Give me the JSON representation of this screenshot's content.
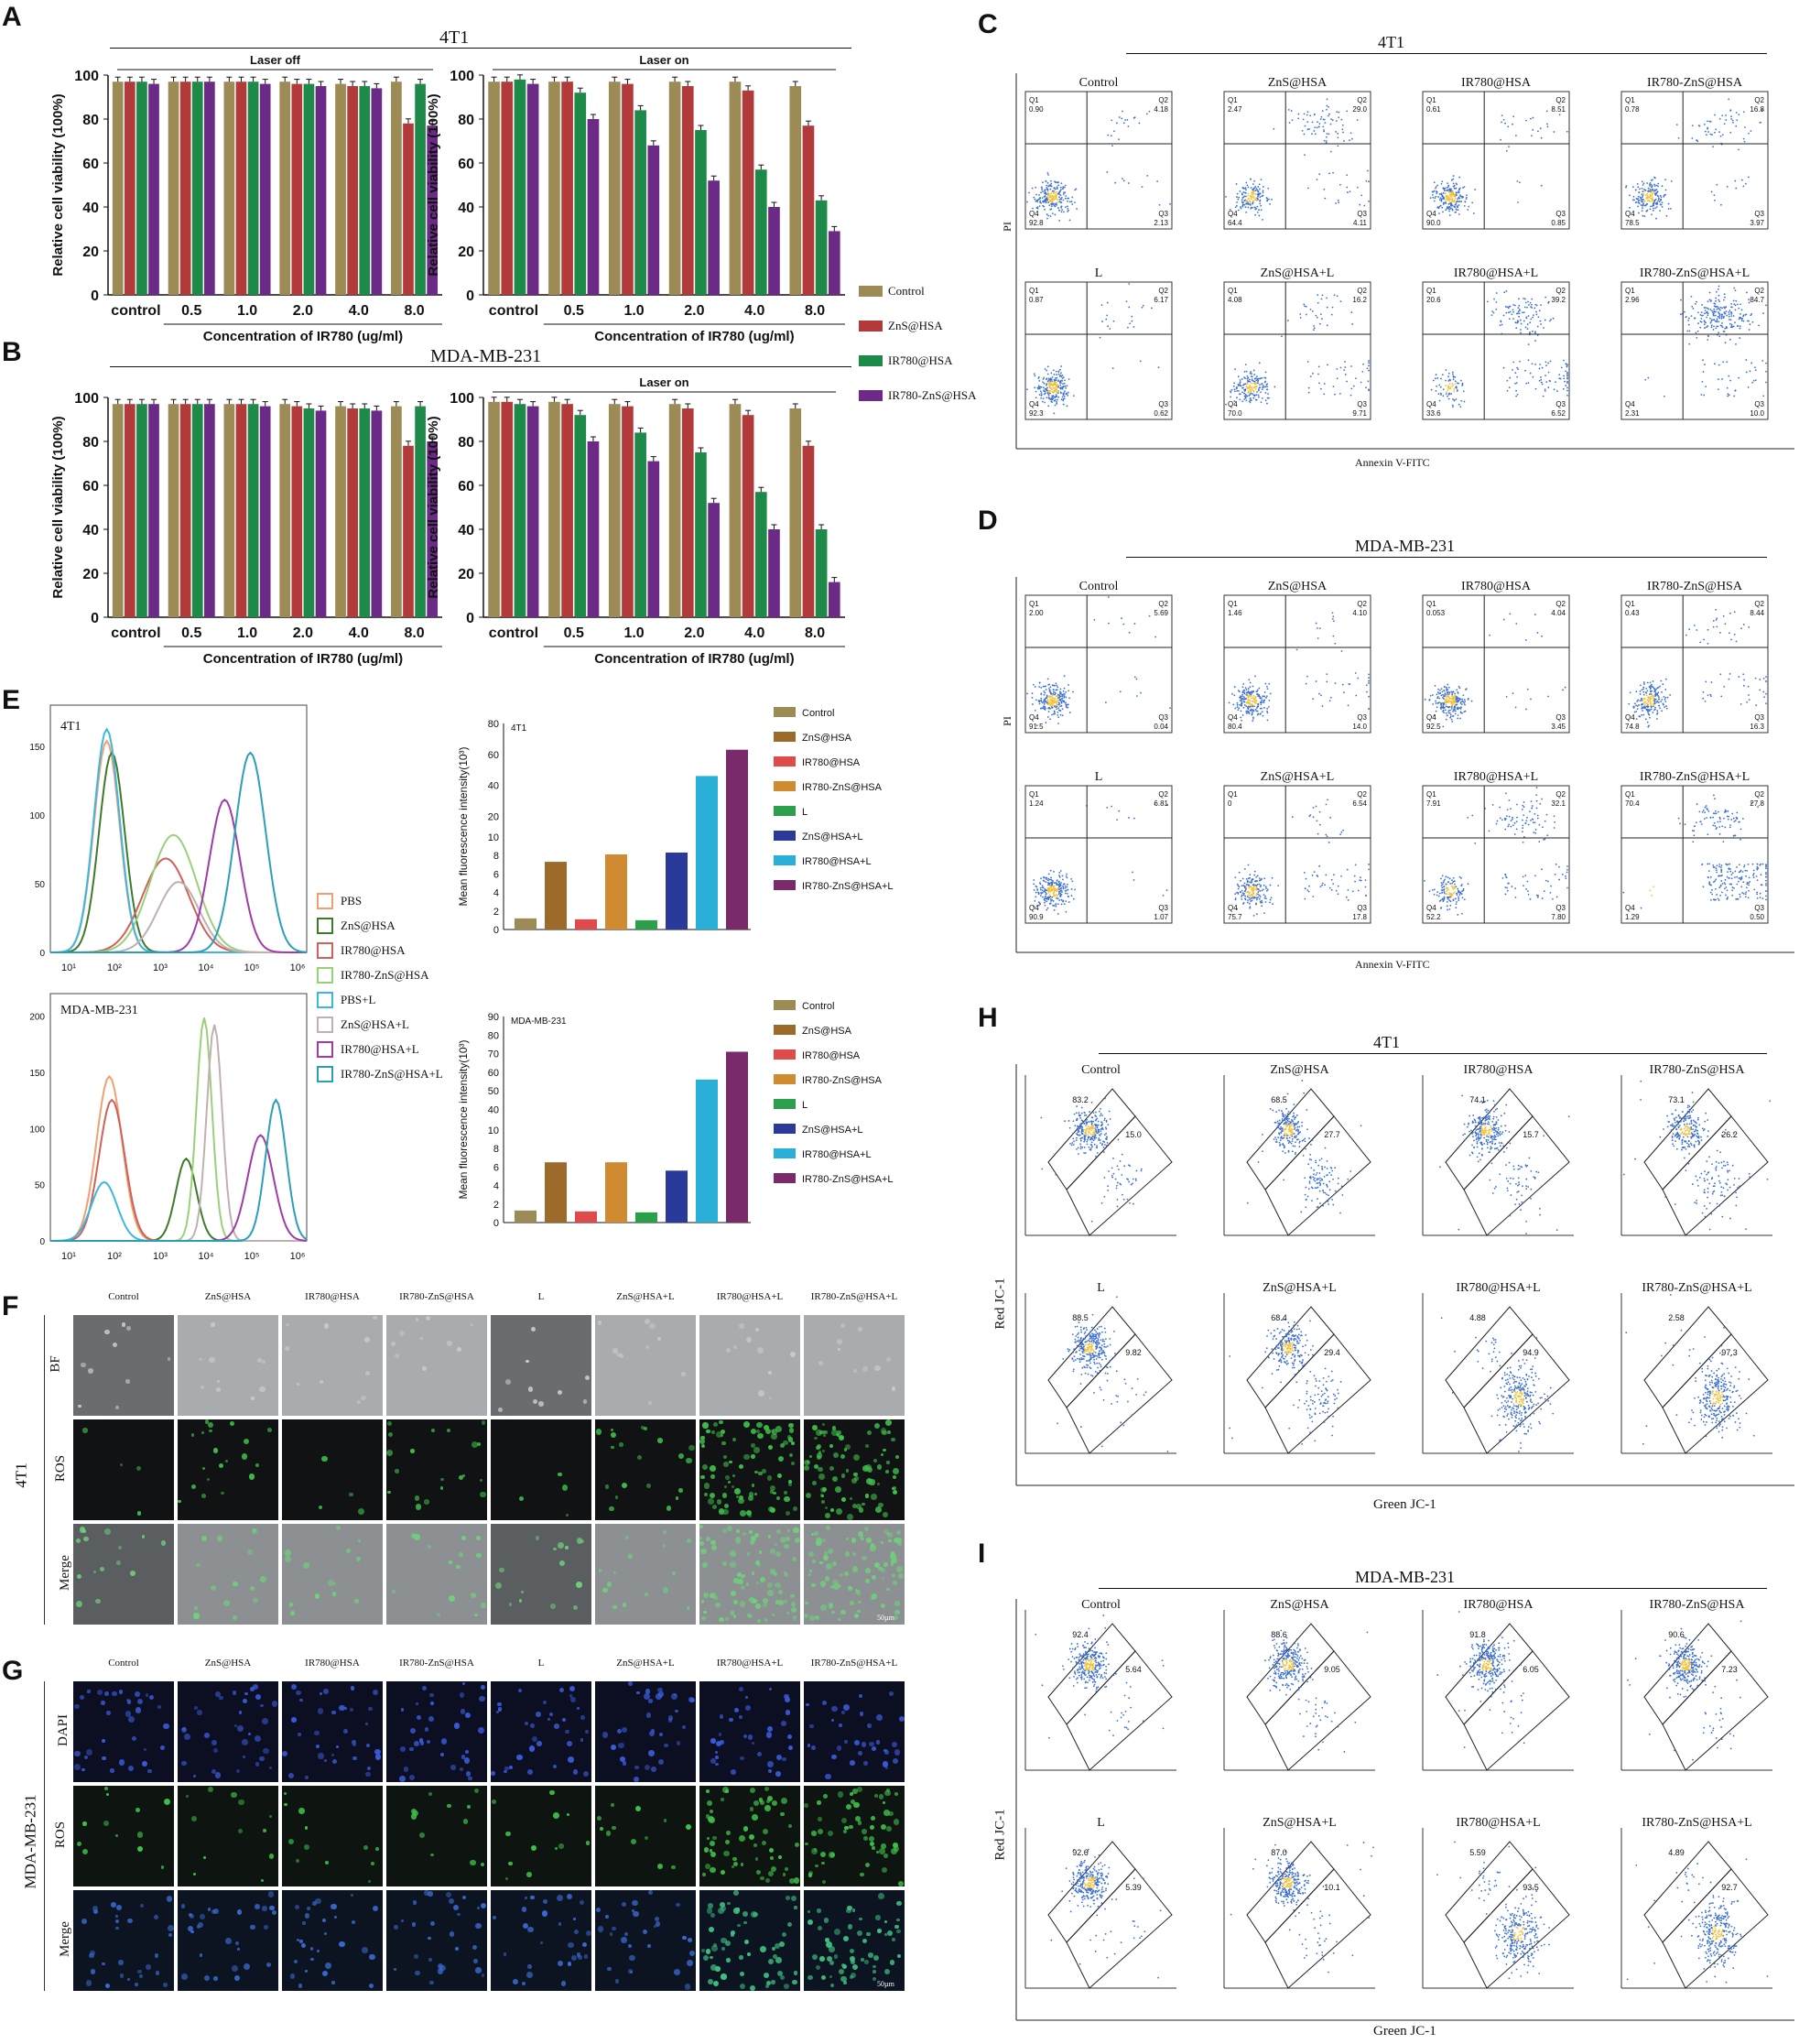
{
  "panel_labels": [
    "A",
    "B",
    "C",
    "D",
    "E",
    "F",
    "G",
    "H",
    "I"
  ],
  "colors": {
    "control": "#9c8b55",
    "zns": "#b33a3a",
    "ir780": "#1e8a4a",
    "ir780zns": "#6a2a86",
    "flowBlue": "#3b6fd6",
    "flowCore": "#f2c23a"
  },
  "panel_A": {
    "cell_line": "4T1",
    "left_title": "Laser off",
    "right_title": "Laser on",
    "ylabel": "Relative cell viability (100%)",
    "xlabel": "Concentration of IR780 (ug/ml)"
  },
  "panel_B": {
    "cell_line": "MDA-MB-231",
    "right_title": "Laser on",
    "ylabel": "Relative cell viability (100%)",
    "xlabel": "Concentration of IR780 (ug/ml)"
  },
  "legend_AB": [
    "Control",
    "ZnS@HSA",
    "IR780@HSA",
    "IR780-ZnS@HSA"
  ],
  "panel_C": {
    "cell_line": "4T1",
    "groups": [
      "Control",
      "ZnS@HSA",
      "IR780@HSA",
      "IR780-ZnS@HSA",
      "L",
      "ZnS@HSA+L",
      "IR780@HSA+L",
      "IR780-ZnS@HSA+L"
    ],
    "q1": [
      "0.90",
      "2.47",
      "0.61",
      "0.78",
      "0.87",
      "4.08",
      "20.6",
      "2.96"
    ],
    "q2": [
      "4.18",
      "29.0",
      "8.51",
      "16.8",
      "6.17",
      "16.2",
      "39.2",
      "84.7"
    ],
    "q3": [
      "2.13",
      "4.11",
      "0.85",
      "3.97",
      "0.62",
      "9.71",
      "6.52",
      "10.0"
    ],
    "q4": [
      "92.8",
      "64.4",
      "90.0",
      "78.5",
      "92.3",
      "70.0",
      "33.6",
      "2.31"
    ],
    "ylabel": "PI",
    "xlabel": "Annexin V-FITC"
  },
  "panel_D": {
    "cell_line": "MDA-MB-231",
    "groups": [
      "Control",
      "ZnS@HSA",
      "IR780@HSA",
      "IR780-ZnS@HSA",
      "L",
      "ZnS@HSA+L",
      "IR780@HSA+L",
      "IR780-ZnS@HSA+L"
    ],
    "q1": [
      "2.00",
      "1.46",
      "0.053",
      "0.43",
      "1.24",
      "0",
      "7.91",
      "70.4"
    ],
    "q2": [
      "5.69",
      "4.10",
      "4.04",
      "8.44",
      "6.81",
      "6.54",
      "32.1",
      "27.8"
    ],
    "q3": [
      "0.04",
      "14.0",
      "3.45",
      "16.3",
      "1.07",
      "17.8",
      "7.80",
      "0.50"
    ],
    "q4": [
      "91.5",
      "80.4",
      "92.5",
      "74.8",
      "90.9",
      "75.7",
      "52.2",
      "1.29"
    ],
    "ylabel": "PI",
    "xlabel": "Annexin V-FITC"
  },
  "panel_E": {
    "top_label": "4T1",
    "bottom_label": "MDA-MB-231",
    "hist_legend": [
      "PBS",
      "ZnS@HSA",
      "IR780@HSA",
      "IR780-ZnS@HSA",
      "PBS+L",
      "ZnS@HSA+L",
      "IR780@HSA+L",
      "IR780-ZnS@HSA+L"
    ],
    "hist_colors": [
      "#f0a070",
      "#3f7a2a",
      "#d0605a",
      "#9ad07a",
      "#3cb8e0",
      "#c0b0b0",
      "#a03aa8",
      "#2aa0b8"
    ],
    "bar_legend": [
      "Control",
      "ZnS@HSA",
      "IR780@HSA",
      "IR780-ZnS@HSA",
      "L",
      "ZnS@HSA+L",
      "IR780@HSA+L",
      "IR780-ZnS@HSA+L"
    ],
    "bar_colors": [
      "#9c8b55",
      "#9c6a2a",
      "#e04a4a",
      "#d08a30",
      "#2aa04a",
      "#2a3a9a",
      "#2ab0d8",
      "#7a2a6a"
    ],
    "ylabel": "Mean fluorescence intensity(10³)"
  },
  "panel_F": {
    "groups": [
      "Control",
      "ZnS@HSA",
      "IR780@HSA",
      "IR780-ZnS@HSA",
      "L",
      "ZnS@HSA+L",
      "IR780@HSA+L",
      "IR780-ZnS@HSA+L"
    ],
    "rows": [
      "BF",
      "ROS",
      "Merge"
    ],
    "cell_line": "4T1",
    "scale": "50µm"
  },
  "panel_G": {
    "groups": [
      "Control",
      "ZnS@HSA",
      "IR780@HSA",
      "IR780-ZnS@HSA",
      "L",
      "ZnS@HSA+L",
      "IR780@HSA+L",
      "IR780-ZnS@HSA+L"
    ],
    "rows": [
      "DAPI",
      "ROS",
      "Merge"
    ],
    "cell_line": "MDA-MB-231",
    "scale": "50µm"
  },
  "panel_H": {
    "cell_line": "4T1",
    "groups": [
      "Control",
      "ZnS@HSA",
      "IR780@HSA",
      "IR780-ZnS@HSA",
      "L",
      "ZnS@HSA+L",
      "IR780@HSA+L",
      "IR780-ZnS@HSA+L"
    ],
    "red": [
      "83.2",
      "68.5",
      "74.1",
      "73.1",
      "88.5",
      "68.4",
      "4.88",
      "2.58"
    ],
    "green": [
      "15.0",
      "27.7",
      "15.7",
      "26.2",
      "9.82",
      "29.4",
      "94.9",
      "97.3"
    ],
    "ylabel": "Red JC-1",
    "xlabel": "Green JC-1"
  },
  "panel_I": {
    "cell_line": "MDA-MB-231",
    "groups": [
      "Control",
      "ZnS@HSA",
      "IR780@HSA",
      "IR780-ZnS@HSA",
      "L",
      "ZnS@HSA+L",
      "IR780@HSA+L",
      "IR780-ZnS@HSA+L"
    ],
    "red": [
      "92.4",
      "88.6",
      "91.8",
      "90.6",
      "92.6",
      "87.0",
      "5.59",
      "4.89"
    ],
    "green": [
      "5.64",
      "9.05",
      "6.05",
      "7.23",
      "5.39",
      "10.1",
      "93.5",
      "92.7"
    ],
    "ylabel": "Red JC-1",
    "xlabel": "Green JC-1"
  },
  "chart_data": [
    {
      "type": "bar",
      "title": "Laser off",
      "ylabel": "Relative cell viability (100%)",
      "xlabel": "Concentration of IR780 (ug/ml)",
      "categories": [
        "control",
        "0.5",
        "1.0",
        "2.0",
        "4.0",
        "8.0"
      ],
      "ylim": [
        0,
        100
      ],
      "series": [
        {
          "name": "Control",
          "values": [
            97,
            97,
            97,
            97,
            96,
            97
          ]
        },
        {
          "name": "ZnS@HSA",
          "values": [
            97,
            97,
            97,
            96,
            95,
            78
          ]
        },
        {
          "name": "IR780@HSA",
          "values": [
            97,
            97,
            97,
            96,
            95,
            96
          ]
        },
        {
          "name": "IR780-ZnS@HSA",
          "values": [
            96,
            97,
            96,
            95,
            94,
            77
          ]
        }
      ]
    },
    {
      "type": "bar",
      "title": "Laser on",
      "ylabel": "Relative cell viability (100%)",
      "xlabel": "Concentration of IR780 (ug/ml)",
      "categories": [
        "control",
        "0.5",
        "1.0",
        "2.0",
        "4.0",
        "8.0"
      ],
      "ylim": [
        0,
        100
      ],
      "series": [
        {
          "name": "Control",
          "values": [
            97,
            97,
            97,
            97,
            97,
            95
          ]
        },
        {
          "name": "ZnS@HSA",
          "values": [
            97,
            97,
            96,
            95,
            93,
            77
          ]
        },
        {
          "name": "IR780@HSA",
          "values": [
            98,
            92,
            84,
            75,
            57,
            43
          ]
        },
        {
          "name": "IR780-ZnS@HSA",
          "values": [
            96,
            80,
            68,
            52,
            40,
            29
          ]
        }
      ]
    },
    {
      "type": "bar",
      "title": "",
      "ylabel": "Relative cell viability (100%)",
      "xlabel": "Concentration of IR780 (ug/ml)",
      "categories": [
        "control",
        "0.5",
        "1.0",
        "2.0",
        "4.0",
        "8.0"
      ],
      "ylim": [
        0,
        100
      ],
      "series": [
        {
          "name": "Control",
          "values": [
            97,
            97,
            97,
            97,
            96,
            96
          ]
        },
        {
          "name": "ZnS@HSA",
          "values": [
            97,
            97,
            97,
            96,
            95,
            78
          ]
        },
        {
          "name": "IR780@HSA",
          "values": [
            97,
            97,
            97,
            95,
            95,
            96
          ]
        },
        {
          "name": "IR780-ZnS@HSA",
          "values": [
            97,
            97,
            96,
            94,
            94,
            80
          ]
        }
      ]
    },
    {
      "type": "bar",
      "title": "Laser on",
      "ylabel": "Relative cell viability (100%)",
      "xlabel": "Concentration of IR780 (ug/ml)",
      "categories": [
        "control",
        "0.5",
        "1.0",
        "2.0",
        "4.0",
        "8.0"
      ],
      "ylim": [
        0,
        100
      ],
      "series": [
        {
          "name": "Control",
          "values": [
            98,
            98,
            97,
            97,
            97,
            95
          ]
        },
        {
          "name": "ZnS@HSA",
          "values": [
            98,
            97,
            96,
            95,
            92,
            78
          ]
        },
        {
          "name": "IR780@HSA",
          "values": [
            97,
            92,
            84,
            75,
            57,
            40
          ]
        },
        {
          "name": "IR780-ZnS@HSA",
          "values": [
            96,
            80,
            71,
            52,
            40,
            16
          ]
        }
      ]
    },
    {
      "type": "bar",
      "title": "4T1",
      "ylabel": "Mean fluorescence intensity(10³)",
      "categories": [
        "Control",
        "ZnS@HSA",
        "IR780@HSA",
        "IR780-ZnS@HSA",
        "L",
        "ZnS@HSA+L",
        "IR780@HSA+L",
        "IR780-ZnS@HSA+L"
      ],
      "values": [
        1.2,
        7.3,
        1.1,
        8.1,
        1.0,
        8.3,
        46,
        63
      ]
    },
    {
      "type": "bar",
      "title": "MDA-MB-231",
      "ylabel": "Mean fluorescence intensity(10³)",
      "categories": [
        "Control",
        "ZnS@HSA",
        "IR780@HSA",
        "IR780-ZnS@HSA",
        "L",
        "ZnS@HSA+L",
        "IR780@HSA+L",
        "IR780-ZnS@HSA+L"
      ],
      "values": [
        1.3,
        6.5,
        1.2,
        6.5,
        1.1,
        5.6,
        56,
        71
      ]
    }
  ]
}
